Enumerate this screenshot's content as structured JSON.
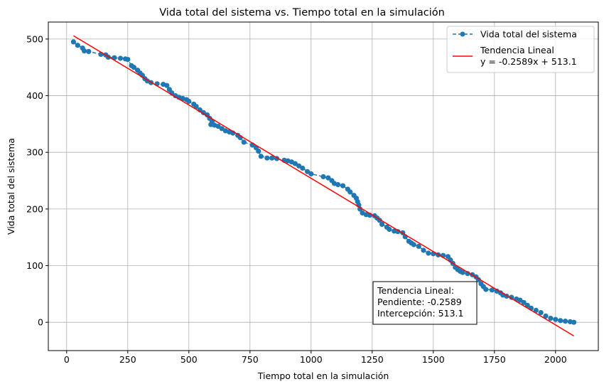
{
  "chart_data": {
    "type": "scatter",
    "title": "Vida total del sistema vs. Tiempo total en la simulación",
    "xlabel": "Tiempo total en la simulación",
    "ylabel": "Vida total del sistema",
    "xlim": [
      -75,
      2175
    ],
    "ylim": [
      -50,
      530
    ],
    "xticks": [
      "0",
      "250",
      "500",
      "750",
      "1000",
      "1250",
      "1500",
      "1750",
      "2000"
    ],
    "yticks": [
      "0",
      "100",
      "200",
      "300",
      "400",
      "500"
    ],
    "grid": true,
    "legend_position": "top-right",
    "legend": {
      "series_label": "Vida total del sistema",
      "trend_label_line1": "Tendencia Lineal",
      "trend_label_line2": "y = -0.2589x + 513.1"
    },
    "annotation": {
      "line1": "Tendencia Lineal:",
      "line2": "Pendiente: -0.2589",
      "line3": "Intercepción: 513.1"
    },
    "series": [
      {
        "name": "Vida total del sistema",
        "style": "dashed-markers",
        "color": "#1f77b4",
        "points": [
          [
            28,
            495
          ],
          [
            45,
            489
          ],
          [
            65,
            484
          ],
          [
            72,
            479
          ],
          [
            90,
            478
          ],
          [
            140,
            473
          ],
          [
            160,
            472
          ],
          [
            170,
            468
          ],
          [
            195,
            467
          ],
          [
            220,
            466
          ],
          [
            240,
            465
          ],
          [
            250,
            464
          ],
          [
            265,
            453
          ],
          [
            275,
            450
          ],
          [
            290,
            445
          ],
          [
            300,
            440
          ],
          [
            310,
            436
          ],
          [
            320,
            430
          ],
          [
            330,
            426
          ],
          [
            345,
            423
          ],
          [
            370,
            421
          ],
          [
            395,
            420
          ],
          [
            410,
            418
          ],
          [
            420,
            411
          ],
          [
            430,
            405
          ],
          [
            445,
            400
          ],
          [
            460,
            397
          ],
          [
            475,
            395
          ],
          [
            490,
            393
          ],
          [
            500,
            390
          ],
          [
            520,
            385
          ],
          [
            530,
            381
          ],
          [
            545,
            375
          ],
          [
            560,
            370
          ],
          [
            575,
            366
          ],
          [
            585,
            360
          ],
          [
            595,
            355
          ],
          [
            590,
            349
          ],
          [
            605,
            348
          ],
          [
            620,
            346
          ],
          [
            635,
            342
          ],
          [
            650,
            338
          ],
          [
            665,
            336
          ],
          [
            680,
            334
          ],
          [
            700,
            330
          ],
          [
            710,
            326
          ],
          [
            725,
            318
          ],
          [
            760,
            313
          ],
          [
            775,
            308
          ],
          [
            785,
            302
          ],
          [
            795,
            293
          ],
          [
            820,
            290
          ],
          [
            840,
            290
          ],
          [
            860,
            289
          ],
          [
            890,
            286
          ],
          [
            905,
            285
          ],
          [
            920,
            283
          ],
          [
            935,
            280
          ],
          [
            950,
            276
          ],
          [
            965,
            272
          ],
          [
            985,
            266
          ],
          [
            1000,
            262
          ],
          [
            1050,
            257
          ],
          [
            1070,
            255
          ],
          [
            1085,
            250
          ],
          [
            1095,
            245
          ],
          [
            1110,
            243
          ],
          [
            1130,
            241
          ],
          [
            1150,
            235
          ],
          [
            1160,
            230
          ],
          [
            1175,
            224
          ],
          [
            1185,
            219
          ],
          [
            1190,
            213
          ],
          [
            1195,
            207
          ],
          [
            1200,
            200
          ],
          [
            1210,
            193
          ],
          [
            1225,
            190
          ],
          [
            1240,
            189
          ],
          [
            1260,
            188
          ],
          [
            1270,
            184
          ],
          [
            1280,
            180
          ],
          [
            1290,
            173
          ],
          [
            1310,
            168
          ],
          [
            1320,
            164
          ],
          [
            1340,
            161
          ],
          [
            1355,
            160
          ],
          [
            1375,
            158
          ],
          [
            1385,
            151
          ],
          [
            1400,
            143
          ],
          [
            1410,
            140
          ],
          [
            1420,
            137
          ],
          [
            1440,
            134
          ],
          [
            1460,
            127
          ],
          [
            1480,
            122
          ],
          [
            1500,
            121
          ],
          [
            1520,
            119
          ],
          [
            1540,
            118
          ],
          [
            1560,
            116
          ],
          [
            1570,
            110
          ],
          [
            1580,
            104
          ],
          [
            1590,
            97
          ],
          [
            1600,
            93
          ],
          [
            1610,
            90
          ],
          [
            1620,
            88
          ],
          [
            1640,
            86
          ],
          [
            1660,
            84
          ],
          [
            1675,
            80
          ],
          [
            1685,
            75
          ],
          [
            1695,
            68
          ],
          [
            1705,
            63
          ],
          [
            1715,
            58
          ],
          [
            1740,
            57
          ],
          [
            1760,
            55
          ],
          [
            1775,
            52
          ],
          [
            1785,
            48
          ],
          [
            1800,
            46
          ],
          [
            1820,
            44
          ],
          [
            1840,
            41
          ],
          [
            1855,
            39
          ],
          [
            1870,
            35
          ],
          [
            1885,
            30
          ],
          [
            1900,
            25
          ],
          [
            1920,
            21
          ],
          [
            1940,
            17
          ],
          [
            1960,
            11
          ],
          [
            1980,
            7
          ],
          [
            2000,
            5
          ],
          [
            2020,
            3
          ],
          [
            2040,
            2
          ],
          [
            2060,
            1
          ],
          [
            2075,
            0
          ]
        ]
      },
      {
        "name": "Tendencia Lineal",
        "style": "line",
        "color": "#ff0000",
        "slope": -0.2589,
        "intercept": 513.1,
        "x_range": [
          28,
          2075
        ]
      }
    ]
  }
}
